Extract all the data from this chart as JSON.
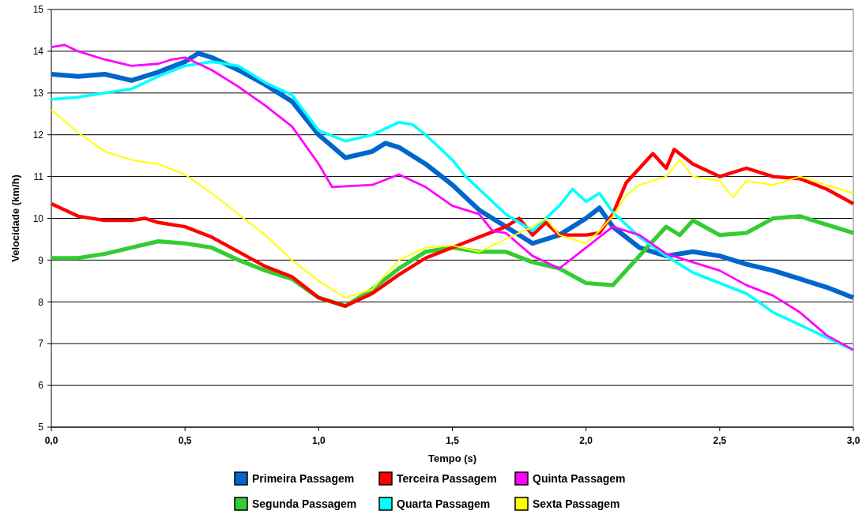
{
  "chart_data": {
    "type": "line",
    "xlabel": "Tempo (s)",
    "ylabel": "Velocidade (km/h)",
    "xlim": [
      0,
      3
    ],
    "xticks": [
      {
        "value": 0,
        "label": "0,0"
      },
      {
        "value": 0.5,
        "label": "0,5"
      },
      {
        "value": 1,
        "label": "1,0"
      },
      {
        "value": 1.5,
        "label": "1,5"
      },
      {
        "value": 2,
        "label": "2,0"
      },
      {
        "value": 2.5,
        "label": "2,5"
      },
      {
        "value": 3,
        "label": "3,0"
      }
    ],
    "ylim": [
      5,
      15
    ],
    "yticks": [
      5,
      6,
      7,
      8,
      9,
      10,
      11,
      12,
      13,
      14,
      15
    ],
    "grid": "y",
    "legend": "bottom",
    "marker": "none",
    "line_style": "solid",
    "series": [
      {
        "name": "Primeira Passagem",
        "color": "#0066cc",
        "x": [
          0,
          0.1,
          0.2,
          0.3,
          0.4,
          0.5,
          0.55,
          0.6,
          0.7,
          0.8,
          0.9,
          1.0,
          1.1,
          1.2,
          1.25,
          1.3,
          1.4,
          1.5,
          1.6,
          1.7,
          1.8,
          1.9,
          2.0,
          2.05,
          2.1,
          2.2,
          2.3,
          2.4,
          2.5,
          2.6,
          2.7,
          2.8,
          2.9,
          3.0
        ],
        "values": [
          13.45,
          13.4,
          13.45,
          13.3,
          13.5,
          13.75,
          13.95,
          13.85,
          13.55,
          13.2,
          12.8,
          12.0,
          11.45,
          11.6,
          11.8,
          11.7,
          11.3,
          10.8,
          10.2,
          9.8,
          9.4,
          9.6,
          10.0,
          10.25,
          9.8,
          9.3,
          9.1,
          9.2,
          9.1,
          8.9,
          8.75,
          8.55,
          8.35,
          8.1
        ]
      },
      {
        "name": "Segunda Passagem",
        "color": "#33cc33",
        "x": [
          0,
          0.1,
          0.2,
          0.3,
          0.4,
          0.5,
          0.6,
          0.7,
          0.8,
          0.9,
          1.0,
          1.1,
          1.2,
          1.3,
          1.4,
          1.5,
          1.6,
          1.7,
          1.8,
          1.9,
          2.0,
          2.1,
          2.2,
          2.3,
          2.35,
          2.4,
          2.5,
          2.6,
          2.7,
          2.8,
          2.9,
          3.0
        ],
        "values": [
          9.05,
          9.05,
          9.15,
          9.3,
          9.45,
          9.4,
          9.3,
          9.0,
          8.75,
          8.55,
          8.1,
          7.9,
          8.3,
          8.8,
          9.2,
          9.3,
          9.2,
          9.2,
          8.95,
          8.8,
          8.45,
          8.4,
          9.1,
          9.8,
          9.6,
          9.95,
          9.6,
          9.65,
          10.0,
          10.05,
          9.85,
          9.65
        ]
      },
      {
        "name": "Terceira Passagem",
        "color": "#ff0000",
        "x": [
          0,
          0.1,
          0.2,
          0.3,
          0.35,
          0.4,
          0.5,
          0.6,
          0.7,
          0.8,
          0.9,
          1.0,
          1.1,
          1.2,
          1.3,
          1.4,
          1.5,
          1.6,
          1.7,
          1.75,
          1.8,
          1.85,
          1.9,
          2.0,
          2.05,
          2.1,
          2.15,
          2.2,
          2.25,
          2.3,
          2.33,
          2.4,
          2.5,
          2.6,
          2.7,
          2.8,
          2.9,
          3.0
        ],
        "values": [
          10.35,
          10.05,
          9.95,
          9.95,
          10.0,
          9.9,
          9.8,
          9.55,
          9.2,
          8.85,
          8.6,
          8.1,
          7.9,
          8.2,
          8.65,
          9.05,
          9.3,
          9.55,
          9.8,
          10.0,
          9.6,
          9.9,
          9.6,
          9.6,
          9.65,
          10.1,
          10.85,
          11.2,
          11.55,
          11.2,
          11.65,
          11.3,
          11.0,
          11.2,
          11.0,
          10.95,
          10.7,
          10.35
        ]
      },
      {
        "name": "Quarta Passagem",
        "color": "#00ffff",
        "x": [
          0,
          0.1,
          0.2,
          0.3,
          0.4,
          0.5,
          0.6,
          0.7,
          0.8,
          0.9,
          1.0,
          1.1,
          1.2,
          1.3,
          1.35,
          1.4,
          1.5,
          1.55,
          1.6,
          1.7,
          1.8,
          1.9,
          1.95,
          2.0,
          2.05,
          2.1,
          2.2,
          2.3,
          2.4,
          2.5,
          2.6,
          2.7,
          2.8,
          2.9,
          3.0
        ],
        "values": [
          12.85,
          12.9,
          13.0,
          13.1,
          13.4,
          13.65,
          13.75,
          13.65,
          13.25,
          12.95,
          12.1,
          11.85,
          12.0,
          12.3,
          12.25,
          12.0,
          11.4,
          11.0,
          10.7,
          10.1,
          9.7,
          10.3,
          10.7,
          10.4,
          10.6,
          10.15,
          9.55,
          9.1,
          8.7,
          8.45,
          8.2,
          7.75,
          7.45,
          7.15,
          6.85
        ]
      },
      {
        "name": "Quinta Passagem",
        "color": "#ff00ff",
        "x": [
          0,
          0.05,
          0.1,
          0.2,
          0.3,
          0.4,
          0.45,
          0.5,
          0.55,
          0.6,
          0.7,
          0.8,
          0.9,
          1.0,
          1.05,
          1.2,
          1.3,
          1.4,
          1.5,
          1.6,
          1.65,
          1.7,
          1.8,
          1.9,
          2.0,
          2.1,
          2.2,
          2.3,
          2.4,
          2.5,
          2.6,
          2.7,
          2.8,
          2.9,
          3.0
        ],
        "values": [
          14.1,
          14.15,
          14.0,
          13.8,
          13.65,
          13.7,
          13.8,
          13.85,
          13.7,
          13.55,
          13.15,
          12.7,
          12.2,
          11.3,
          10.75,
          10.8,
          11.05,
          10.75,
          10.3,
          10.1,
          9.7,
          9.65,
          9.1,
          8.8,
          9.3,
          9.8,
          9.6,
          9.15,
          8.95,
          8.75,
          8.4,
          8.15,
          7.75,
          7.2,
          6.85
        ]
      },
      {
        "name": "Sexta Passagem",
        "color": "#ffff00",
        "x": [
          0,
          0.1,
          0.2,
          0.3,
          0.4,
          0.5,
          0.6,
          0.7,
          0.8,
          0.9,
          1.0,
          1.1,
          1.2,
          1.3,
          1.4,
          1.5,
          1.6,
          1.7,
          1.8,
          1.85,
          1.9,
          2.0,
          2.05,
          2.1,
          2.15,
          2.2,
          2.3,
          2.35,
          2.4,
          2.5,
          2.55,
          2.6,
          2.7,
          2.8,
          2.9,
          3.0
        ],
        "values": [
          12.6,
          12.05,
          11.6,
          11.4,
          11.3,
          11.05,
          10.6,
          10.1,
          9.6,
          9.0,
          8.5,
          8.1,
          8.3,
          9.0,
          9.3,
          9.35,
          9.2,
          9.5,
          9.8,
          10.0,
          9.6,
          9.4,
          9.7,
          10.05,
          10.55,
          10.8,
          11.0,
          11.4,
          11.0,
          10.9,
          10.5,
          10.9,
          10.8,
          11.0,
          10.8,
          10.6
        ]
      }
    ]
  }
}
